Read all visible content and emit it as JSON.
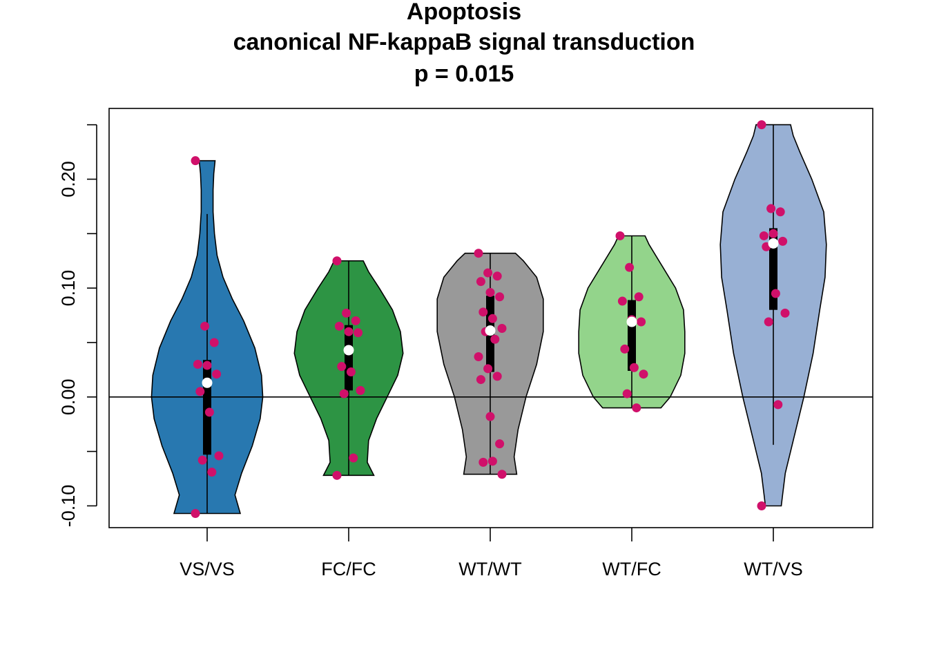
{
  "chart_data": {
    "type": "violin",
    "title_lines": [
      "Apoptosis",
      "canonical NF-kappaB signal transduction",
      "p = 0.015"
    ],
    "xlabel": "",
    "ylabel": "",
    "ylim": [
      -0.12,
      0.265
    ],
    "y_ticks": [
      -0.1,
      0.0,
      0.1,
      0.2
    ],
    "y_tick_labels": [
      "-0.10",
      "0.00",
      "0.10",
      "0.20"
    ],
    "reference_line_y": 0.0,
    "point_color": "#d0106a",
    "median_color": "#ffffff",
    "groups": [
      {
        "label": "VS/VS",
        "color": "#2878b0",
        "median": 0.013,
        "q1": -0.053,
        "q3": 0.034,
        "whisker_low": -0.107,
        "whisker_high": 0.168,
        "density": [
          [
            -0.107,
            0.5
          ],
          [
            -0.09,
            0.42
          ],
          [
            -0.07,
            0.52
          ],
          [
            -0.045,
            0.68
          ],
          [
            -0.02,
            0.8
          ],
          [
            0.0,
            0.84
          ],
          [
            0.02,
            0.82
          ],
          [
            0.045,
            0.72
          ],
          [
            0.07,
            0.55
          ],
          [
            0.09,
            0.38
          ],
          [
            0.11,
            0.24
          ],
          [
            0.13,
            0.15
          ],
          [
            0.15,
            0.11
          ],
          [
            0.17,
            0.09
          ],
          [
            0.19,
            0.09
          ],
          [
            0.205,
            0.1
          ],
          [
            0.217,
            0.12
          ]
        ],
        "points": [
          0.217,
          0.065,
          0.05,
          0.03,
          0.029,
          0.021,
          0.005,
          -0.014,
          -0.054,
          -0.058,
          -0.069,
          -0.107
        ]
      },
      {
        "label": "FC/FC",
        "color": "#2d9444",
        "median": 0.043,
        "q1": 0.006,
        "q3": 0.066,
        "whisker_low": -0.072,
        "whisker_high": 0.125,
        "density": [
          [
            -0.072,
            0.38
          ],
          [
            -0.06,
            0.28
          ],
          [
            -0.04,
            0.3
          ],
          [
            -0.02,
            0.42
          ],
          [
            0.0,
            0.58
          ],
          [
            0.02,
            0.74
          ],
          [
            0.04,
            0.82
          ],
          [
            0.06,
            0.78
          ],
          [
            0.08,
            0.66
          ],
          [
            0.1,
            0.46
          ],
          [
            0.115,
            0.3
          ],
          [
            0.125,
            0.22
          ]
        ],
        "points": [
          0.125,
          0.077,
          0.07,
          0.065,
          0.06,
          0.059,
          0.028,
          0.023,
          0.006,
          0.003,
          -0.056,
          -0.072
        ]
      },
      {
        "label": "WT/WT",
        "color": "#999999",
        "median": 0.061,
        "q1": 0.023,
        "q3": 0.093,
        "whisker_low": -0.071,
        "whisker_high": 0.132,
        "density": [
          [
            -0.071,
            0.4
          ],
          [
            -0.055,
            0.36
          ],
          [
            -0.03,
            0.42
          ],
          [
            0.0,
            0.54
          ],
          [
            0.03,
            0.7
          ],
          [
            0.06,
            0.8
          ],
          [
            0.09,
            0.8
          ],
          [
            0.11,
            0.7
          ],
          [
            0.125,
            0.5
          ],
          [
            0.132,
            0.38
          ]
        ],
        "points": [
          0.132,
          0.114,
          0.111,
          0.106,
          0.096,
          0.092,
          0.078,
          0.072,
          0.063,
          0.06,
          0.053,
          0.037,
          0.026,
          0.019,
          0.016,
          -0.018,
          -0.043,
          -0.06,
          -0.059,
          -0.071
        ]
      },
      {
        "label": "WT/FC",
        "color": "#93d48b",
        "median": 0.069,
        "q1": 0.024,
        "q3": 0.089,
        "whisker_low": -0.01,
        "whisker_high": 0.148,
        "density": [
          [
            -0.01,
            0.44
          ],
          [
            0.0,
            0.58
          ],
          [
            0.02,
            0.74
          ],
          [
            0.04,
            0.8
          ],
          [
            0.06,
            0.8
          ],
          [
            0.08,
            0.78
          ],
          [
            0.1,
            0.66
          ],
          [
            0.12,
            0.46
          ],
          [
            0.14,
            0.26
          ],
          [
            0.148,
            0.2
          ]
        ],
        "points": [
          0.148,
          0.119,
          0.092,
          0.088,
          0.071,
          0.069,
          0.044,
          0.027,
          0.021,
          0.003,
          -0.01
        ]
      },
      {
        "label": "WT/VS",
        "color": "#98b0d4",
        "median": 0.141,
        "q1": 0.08,
        "q3": 0.155,
        "whisker_low": -0.044,
        "whisker_high": 0.25,
        "density": [
          [
            -0.1,
            0.12
          ],
          [
            -0.09,
            0.14
          ],
          [
            -0.07,
            0.18
          ],
          [
            -0.04,
            0.3
          ],
          [
            0.0,
            0.46
          ],
          [
            0.04,
            0.6
          ],
          [
            0.08,
            0.7
          ],
          [
            0.11,
            0.78
          ],
          [
            0.14,
            0.8
          ],
          [
            0.17,
            0.76
          ],
          [
            0.2,
            0.58
          ],
          [
            0.225,
            0.4
          ],
          [
            0.24,
            0.3
          ],
          [
            0.25,
            0.26
          ]
        ],
        "points": [
          0.25,
          0.173,
          0.17,
          0.148,
          0.15,
          0.143,
          0.138,
          0.095,
          0.077,
          0.069,
          -0.007,
          -0.1
        ]
      }
    ]
  }
}
